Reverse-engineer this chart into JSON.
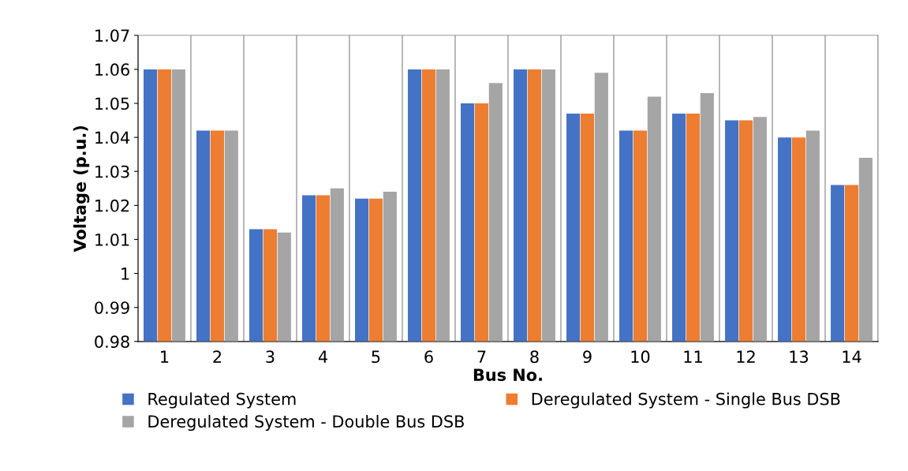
{
  "chart_data": {
    "type": "bar",
    "xlabel": "Bus No.",
    "ylabel": "Voltage (p.u.)",
    "categories": [
      "1",
      "2",
      "3",
      "4",
      "5",
      "6",
      "7",
      "8",
      "9",
      "10",
      "11",
      "12",
      "13",
      "14"
    ],
    "series": [
      {
        "name": "Regulated System",
        "color": "#4472c4",
        "values": [
          1.06,
          1.042,
          1.013,
          1.023,
          1.022,
          1.06,
          1.05,
          1.06,
          1.047,
          1.042,
          1.047,
          1.045,
          1.04,
          1.026
        ]
      },
      {
        "name": "Deregulated System - Single Bus DSB",
        "color": "#ed7d31",
        "values": [
          1.06,
          1.042,
          1.013,
          1.023,
          1.022,
          1.06,
          1.05,
          1.06,
          1.047,
          1.042,
          1.047,
          1.045,
          1.04,
          1.026
        ]
      },
      {
        "name": "Deregulated System - Double Bus DSB",
        "color": "#a5a5a5",
        "values": [
          1.06,
          1.042,
          1.012,
          1.025,
          1.024,
          1.06,
          1.056,
          1.06,
          1.059,
          1.052,
          1.053,
          1.046,
          1.042,
          1.034
        ]
      }
    ],
    "ylim": [
      0.98,
      1.07
    ],
    "yticks": [
      0.98,
      0.99,
      1,
      1.01,
      1.02,
      1.03,
      1.04,
      1.05,
      1.06,
      1.07
    ],
    "grid": "x",
    "legend": "bottom"
  }
}
